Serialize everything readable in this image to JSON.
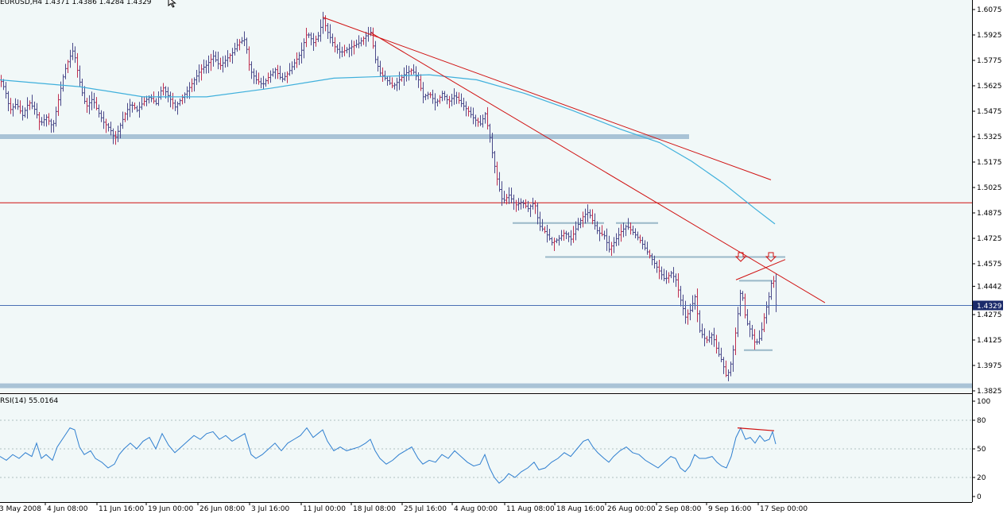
{
  "window": {
    "symbol_info": "EURUSD,H4  1.4371 1.4386 1.4284 1.4329",
    "rsi_label": "RSI(14) 55.0164"
  },
  "colors": {
    "background": "#f1f8f8",
    "grid": "#c8d4d4",
    "candles": "#4a4a8a",
    "candles_alt": "#c03050",
    "moving_average": "#3fb0dc",
    "trendlines": "#d01010",
    "support_bands": "#a9c3d6",
    "horizontal_level": "#d01010",
    "current_price_line": "#4a6fb4",
    "current_price_badge": "#1a2a6a",
    "rsi_line": "#2f7fd0",
    "axis_text": "#000000",
    "marker_arrows": "#d01010"
  },
  "icons": [
    "cursor-arrow-icon",
    "down-arrow-marker-icon"
  ],
  "price_axis": {
    "labels": [
      "1.6075",
      "1.5925",
      "1.5775",
      "1.5625",
      "1.5475",
      "1.5325",
      "1.5175",
      "1.5025",
      "1.4875",
      "1.4725",
      "1.4575",
      "1.4442",
      "1.4275",
      "1.4125",
      "1.3975",
      "1.3825"
    ],
    "current_price": "1.4329"
  },
  "rsi_axis": {
    "labels": [
      "100",
      "80",
      "50",
      "20",
      "0"
    ]
  },
  "time_axis": {
    "labels": [
      "3 May 2008",
      "4 Jun 08:00",
      "11 Jun 16:00",
      "19 Jun 00:00",
      "26 Jun 08:00",
      "3 Jul 16:00",
      "11 Jul 00:00",
      "18 Jul 08:00",
      "25 Jul 16:00",
      "4 Aug 00:00",
      "11 Aug 08:00",
      "18 Aug 16:00",
      "26 Aug 00:00",
      "2 Sep 08:00",
      "9 Sep 16:00",
      "17 Sep 00:00"
    ]
  },
  "chart_data": {
    "type": "line",
    "instrument": "EURUSD",
    "timeframe": "H4",
    "ylim": [
      1.38,
      1.61
    ],
    "price_path": [
      [
        0,
        1.566
      ],
      [
        6,
        1.56
      ],
      [
        12,
        1.548
      ],
      [
        20,
        1.552
      ],
      [
        28,
        1.545
      ],
      [
        36,
        1.553
      ],
      [
        44,
        1.548
      ],
      [
        50,
        1.54
      ],
      [
        58,
        1.544
      ],
      [
        66,
        1.538
      ],
      [
        72,
        1.552
      ],
      [
        80,
        1.57
      ],
      [
        86,
        1.578
      ],
      [
        92,
        1.584
      ],
      [
        96,
        1.574
      ],
      [
        102,
        1.56
      ],
      [
        108,
        1.55
      ],
      [
        116,
        1.555
      ],
      [
        122,
        1.548
      ],
      [
        130,
        1.541
      ],
      [
        138,
        1.537
      ],
      [
        144,
        1.531
      ],
      [
        150,
        1.538
      ],
      [
        156,
        1.545
      ],
      [
        164,
        1.552
      ],
      [
        172,
        1.548
      ],
      [
        180,
        1.553
      ],
      [
        188,
        1.556
      ],
      [
        196,
        1.552
      ],
      [
        204,
        1.562
      ],
      [
        212,
        1.556
      ],
      [
        220,
        1.55
      ],
      [
        228,
        1.555
      ],
      [
        236,
        1.56
      ],
      [
        244,
        1.566
      ],
      [
        252,
        1.572
      ],
      [
        260,
        1.575
      ],
      [
        268,
        1.58
      ],
      [
        276,
        1.574
      ],
      [
        284,
        1.578
      ],
      [
        292,
        1.582
      ],
      [
        300,
        1.588
      ],
      [
        308,
        1.59
      ],
      [
        314,
        1.572
      ],
      [
        322,
        1.566
      ],
      [
        330,
        1.563
      ],
      [
        338,
        1.568
      ],
      [
        346,
        1.572
      ],
      [
        354,
        1.566
      ],
      [
        362,
        1.57
      ],
      [
        370,
        1.576
      ],
      [
        378,
        1.582
      ],
      [
        386,
        1.594
      ],
      [
        394,
        1.588
      ],
      [
        400,
        1.592
      ],
      [
        406,
        1.602
      ],
      [
        412,
        1.594
      ],
      [
        420,
        1.586
      ],
      [
        428,
        1.582
      ],
      [
        436,
        1.584
      ],
      [
        444,
        1.586
      ],
      [
        452,
        1.588
      ],
      [
        460,
        1.592
      ],
      [
        466,
        1.594
      ],
      [
        472,
        1.578
      ],
      [
        478,
        1.57
      ],
      [
        486,
        1.566
      ],
      [
        494,
        1.562
      ],
      [
        502,
        1.566
      ],
      [
        510,
        1.57
      ],
      [
        518,
        1.572
      ],
      [
        526,
        1.566
      ],
      [
        532,
        1.556
      ],
      [
        540,
        1.558
      ],
      [
        548,
        1.552
      ],
      [
        556,
        1.558
      ],
      [
        564,
        1.553
      ],
      [
        572,
        1.557
      ],
      [
        580,
        1.552
      ],
      [
        588,
        1.548
      ],
      [
        596,
        1.543
      ],
      [
        604,
        1.54
      ],
      [
        610,
        1.546
      ],
      [
        616,
        1.532
      ],
      [
        620,
        1.52
      ],
      [
        626,
        1.505
      ],
      [
        632,
        1.494
      ],
      [
        640,
        1.498
      ],
      [
        648,
        1.492
      ],
      [
        656,
        1.494
      ],
      [
        664,
        1.49
      ],
      [
        672,
        1.494
      ],
      [
        678,
        1.48
      ],
      [
        686,
        1.476
      ],
      [
        694,
        1.47
      ],
      [
        702,
        1.472
      ],
      [
        710,
        1.476
      ],
      [
        718,
        1.472
      ],
      [
        726,
        1.48
      ],
      [
        734,
        1.486
      ],
      [
        740,
        1.488
      ],
      [
        746,
        1.482
      ],
      [
        752,
        1.476
      ],
      [
        760,
        1.474
      ],
      [
        766,
        1.466
      ],
      [
        772,
        1.47
      ],
      [
        780,
        1.476
      ],
      [
        788,
        1.48
      ],
      [
        796,
        1.476
      ],
      [
        804,
        1.472
      ],
      [
        812,
        1.466
      ],
      [
        820,
        1.46
      ],
      [
        828,
        1.454
      ],
      [
        836,
        1.448
      ],
      [
        844,
        1.452
      ],
      [
        850,
        1.448
      ],
      [
        856,
        1.436
      ],
      [
        862,
        1.426
      ],
      [
        868,
        1.43
      ],
      [
        874,
        1.438
      ],
      [
        880,
        1.418
      ],
      [
        888,
        1.412
      ],
      [
        896,
        1.416
      ],
      [
        902,
        1.406
      ],
      [
        908,
        1.4
      ],
      [
        914,
        1.39
      ],
      [
        920,
        1.4
      ],
      [
        926,
        1.42
      ],
      [
        932,
        1.444
      ],
      [
        938,
        1.424
      ],
      [
        944,
        1.418
      ],
      [
        950,
        1.41
      ],
      [
        956,
        1.414
      ],
      [
        962,
        1.428
      ],
      [
        968,
        1.44
      ],
      [
        972,
        1.452
      ],
      [
        976,
        1.433
      ]
    ],
    "moving_average": [
      [
        0,
        1.566
      ],
      [
        100,
        1.562
      ],
      [
        180,
        1.556
      ],
      [
        260,
        1.556
      ],
      [
        340,
        1.561
      ],
      [
        420,
        1.567
      ],
      [
        480,
        1.568
      ],
      [
        540,
        1.569
      ],
      [
        600,
        1.566
      ],
      [
        660,
        1.558
      ],
      [
        720,
        1.548
      ],
      [
        780,
        1.537
      ],
      [
        830,
        1.529
      ],
      [
        870,
        1.518
      ],
      [
        910,
        1.505
      ],
      [
        950,
        1.49
      ],
      [
        975,
        1.481
      ]
    ],
    "rsi": [
      [
        0,
        42
      ],
      [
        8,
        38
      ],
      [
        16,
        44
      ],
      [
        24,
        40
      ],
      [
        32,
        46
      ],
      [
        40,
        42
      ],
      [
        46,
        56
      ],
      [
        52,
        40
      ],
      [
        58,
        44
      ],
      [
        66,
        38
      ],
      [
        72,
        52
      ],
      [
        80,
        62
      ],
      [
        88,
        72
      ],
      [
        94,
        70
      ],
      [
        100,
        52
      ],
      [
        106,
        44
      ],
      [
        114,
        48
      ],
      [
        120,
        40
      ],
      [
        128,
        36
      ],
      [
        136,
        30
      ],
      [
        144,
        34
      ],
      [
        150,
        44
      ],
      [
        156,
        50
      ],
      [
        164,
        56
      ],
      [
        172,
        50
      ],
      [
        180,
        58
      ],
      [
        188,
        62
      ],
      [
        196,
        50
      ],
      [
        204,
        66
      ],
      [
        212,
        54
      ],
      [
        220,
        46
      ],
      [
        228,
        52
      ],
      [
        236,
        58
      ],
      [
        244,
        64
      ],
      [
        252,
        60
      ],
      [
        260,
        66
      ],
      [
        268,
        68
      ],
      [
        276,
        60
      ],
      [
        284,
        64
      ],
      [
        292,
        58
      ],
      [
        300,
        62
      ],
      [
        308,
        66
      ],
      [
        316,
        44
      ],
      [
        322,
        40
      ],
      [
        330,
        44
      ],
      [
        338,
        50
      ],
      [
        346,
        56
      ],
      [
        354,
        48
      ],
      [
        362,
        56
      ],
      [
        370,
        60
      ],
      [
        378,
        64
      ],
      [
        386,
        72
      ],
      [
        394,
        62
      ],
      [
        400,
        66
      ],
      [
        406,
        70
      ],
      [
        412,
        58
      ],
      [
        420,
        48
      ],
      [
        428,
        52
      ],
      [
        436,
        48
      ],
      [
        444,
        50
      ],
      [
        452,
        52
      ],
      [
        460,
        56
      ],
      [
        466,
        60
      ],
      [
        472,
        48
      ],
      [
        478,
        40
      ],
      [
        486,
        34
      ],
      [
        494,
        38
      ],
      [
        502,
        44
      ],
      [
        510,
        48
      ],
      [
        518,
        52
      ],
      [
        526,
        40
      ],
      [
        532,
        34
      ],
      [
        540,
        38
      ],
      [
        548,
        36
      ],
      [
        556,
        44
      ],
      [
        564,
        40
      ],
      [
        572,
        48
      ],
      [
        580,
        42
      ],
      [
        588,
        36
      ],
      [
        596,
        32
      ],
      [
        604,
        34
      ],
      [
        610,
        44
      ],
      [
        616,
        30
      ],
      [
        622,
        20
      ],
      [
        628,
        14
      ],
      [
        634,
        18
      ],
      [
        640,
        24
      ],
      [
        648,
        20
      ],
      [
        656,
        26
      ],
      [
        664,
        30
      ],
      [
        672,
        36
      ],
      [
        678,
        28
      ],
      [
        686,
        30
      ],
      [
        694,
        36
      ],
      [
        702,
        40
      ],
      [
        710,
        46
      ],
      [
        718,
        42
      ],
      [
        726,
        50
      ],
      [
        734,
        58
      ],
      [
        740,
        60
      ],
      [
        746,
        52
      ],
      [
        752,
        46
      ],
      [
        760,
        40
      ],
      [
        766,
        36
      ],
      [
        772,
        42
      ],
      [
        780,
        48
      ],
      [
        788,
        52
      ],
      [
        796,
        46
      ],
      [
        804,
        44
      ],
      [
        812,
        38
      ],
      [
        820,
        34
      ],
      [
        828,
        30
      ],
      [
        836,
        36
      ],
      [
        844,
        42
      ],
      [
        850,
        40
      ],
      [
        856,
        30
      ],
      [
        862,
        26
      ],
      [
        868,
        32
      ],
      [
        874,
        44
      ],
      [
        880,
        40
      ],
      [
        888,
        40
      ],
      [
        896,
        42
      ],
      [
        902,
        36
      ],
      [
        908,
        32
      ],
      [
        914,
        30
      ],
      [
        920,
        42
      ],
      [
        926,
        62
      ],
      [
        932,
        72
      ],
      [
        938,
        60
      ],
      [
        944,
        62
      ],
      [
        950,
        56
      ],
      [
        956,
        64
      ],
      [
        962,
        58
      ],
      [
        968,
        60
      ],
      [
        972,
        68
      ],
      [
        976,
        55
      ]
    ],
    "support_bands": [
      1.5325,
      1.3855
    ],
    "horizontal_level": 1.4935,
    "range_lines": [
      {
        "from": 645,
        "to": 760,
        "y": 1.4815
      },
      {
        "from": 775,
        "to": 828,
        "y": 1.4815
      },
      {
        "from": 686,
        "to": 988,
        "y": 1.4615
      },
      {
        "from": 930,
        "to": 972,
        "y": 1.4475
      },
      {
        "from": 936,
        "to": 972,
        "y": 1.4065
      }
    ],
    "trendlines": [
      {
        "x1": 406,
        "y1": 1.603,
        "x2": 970,
        "y2": 1.507
      },
      {
        "x1": 466,
        "y1": 1.594,
        "x2": 1038,
        "y2": 1.4345
      },
      {
        "x1": 926,
        "y1": 1.448,
        "x2": 988,
        "y2": 1.46
      }
    ],
    "marker_arrows_x": [
      932,
      970
    ],
    "rsi_trendline": {
      "x1": 928,
      "x2": 974,
      "y1": 72,
      "y2": 69
    },
    "rsi_levels": [
      80,
      50,
      20
    ]
  }
}
